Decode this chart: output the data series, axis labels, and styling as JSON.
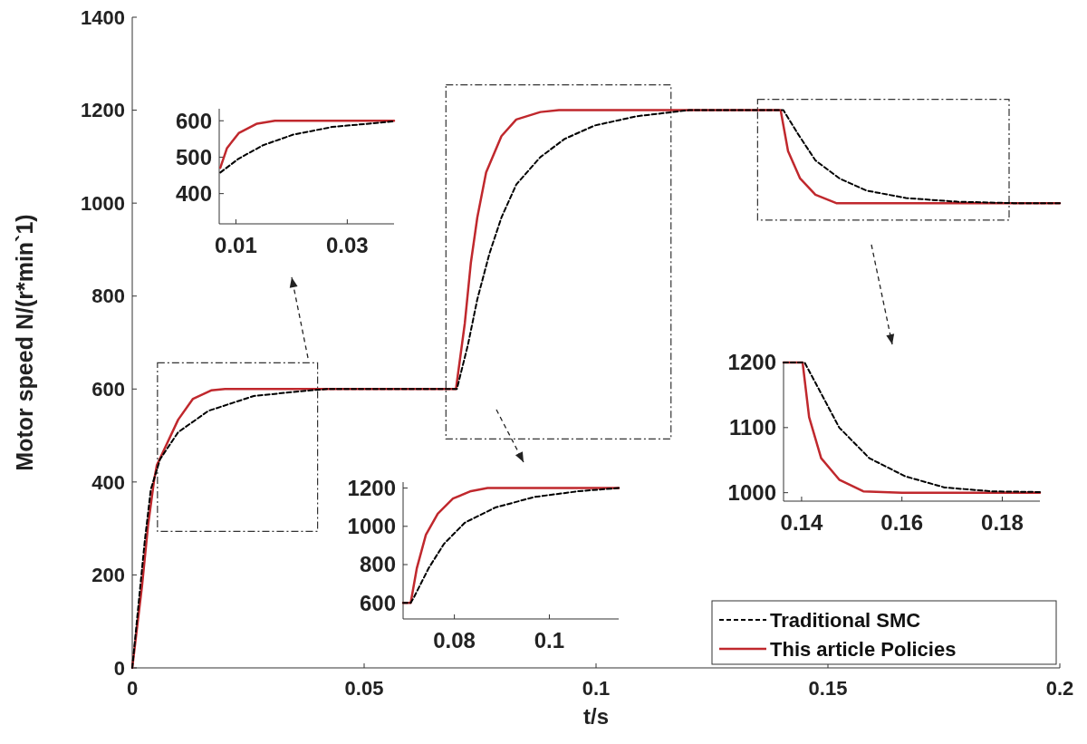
{
  "chart_data": [
    {
      "type": "line",
      "xlabel": "t/s",
      "ylabel": "Motor speed N/(r*min`1)",
      "xlim": [
        0,
        0.2
      ],
      "xticks": [
        0,
        0.05,
        0.1,
        0.15,
        0.2
      ],
      "ylim": [
        0,
        1400
      ],
      "yticks": [
        0,
        200,
        400,
        600,
        800,
        1000,
        1200,
        1400
      ],
      "legend": "bottom right",
      "grid": false,
      "series": [
        {
          "name": "Traditional SMC",
          "color": "#000000",
          "line_style": "dashed",
          "x": [
            0,
            0.0027,
            0.004,
            0.006,
            0.0099,
            0.0164,
            0.0262,
            0.036,
            0.042,
            0.07,
            0.0724,
            0.0744,
            0.077,
            0.0796,
            0.0828,
            0.088,
            0.0932,
            0.0997,
            0.1088,
            0.12,
            0.1404,
            0.1434,
            0.1473,
            0.1525,
            0.1583,
            0.1668,
            0.1779,
            0.19,
            0.2
          ],
          "values": [
            0,
            273,
            384,
            449,
            507,
            553,
            585,
            595,
            600,
            600,
            696,
            793,
            891,
            969,
            1040,
            1099,
            1138,
            1167,
            1187,
            1200,
            1200,
            1151,
            1092,
            1053,
            1027,
            1011,
            1003,
            1000,
            1000
          ]
        },
        {
          "name": "This article Policies",
          "color": "#c0282d",
          "line_style": "solid",
          "x": [
            0,
            0.0021,
            0.0034,
            0.0047,
            0.0053,
            0.0099,
            0.0131,
            0.017,
            0.02,
            0.0698,
            0.0717,
            0.073,
            0.0744,
            0.0763,
            0.0796,
            0.0828,
            0.088,
            0.092,
            0.1398,
            0.1414,
            0.144,
            0.1473,
            0.1518,
            0.2
          ],
          "values": [
            0,
            176,
            306,
            403,
            436,
            534,
            579,
            597,
            600,
            600,
            741,
            871,
            969,
            1066,
            1144,
            1180,
            1196,
            1200,
            1200,
            1112,
            1053,
            1018,
            1000,
            1000
          ]
        }
      ]
    },
    {
      "type": "line",
      "xlim": [
        0.007,
        0.0384
      ],
      "xticks": [
        0.01,
        0.03
      ],
      "ylim": [
        317,
        633
      ],
      "yticks": [
        400,
        500,
        600
      ],
      "series": [
        {
          "color": "#000000",
          "line_style": "dashed",
          "x": [
            0.0072,
            0.0105,
            0.0149,
            0.0203,
            0.0273,
            0.0381
          ],
          "values": [
            458,
            496,
            533,
            562,
            583,
            598
          ]
        },
        {
          "color": "#c0282d",
          "line_style": "solid",
          "x": [
            0.0072,
            0.0084,
            0.0105,
            0.0138,
            0.017,
            0.0384
          ],
          "values": [
            471,
            525,
            566,
            592,
            600,
            600
          ]
        }
      ]
    },
    {
      "type": "line",
      "xlim": [
        0.0692,
        0.1146
      ],
      "xticks": [
        0.08,
        0.1
      ],
      "ylim": [
        516,
        1231
      ],
      "yticks": [
        600,
        800,
        1000,
        1200
      ],
      "series": [
        {
          "color": "#000000",
          "line_style": "dashed",
          "x": [
            0.0692,
            0.0708,
            0.0714,
            0.0746,
            0.0778,
            0.0822,
            0.0886,
            0.0968,
            0.1063,
            0.1146
          ],
          "values": [
            600,
            600,
            625,
            782,
            908,
            1019,
            1098,
            1153,
            1184,
            1200
          ]
        },
        {
          "color": "#c0282d",
          "line_style": "solid",
          "x": [
            0.0692,
            0.0708,
            0.0721,
            0.074,
            0.0765,
            0.0797,
            0.0835,
            0.087,
            0.1146
          ],
          "values": [
            600,
            600,
            782,
            956,
            1066,
            1145,
            1184,
            1200,
            1200
          ]
        }
      ]
    },
    {
      "type": "line",
      "xlim": [
        0.1364,
        0.1875
      ],
      "xticks": [
        0.14,
        0.16,
        0.18
      ],
      "ylim": [
        987,
        1200
      ],
      "yticks": [
        1000,
        1100,
        1200
      ],
      "series": [
        {
          "color": "#000000",
          "line_style": "dashed",
          "x": [
            0.1364,
            0.1406,
            0.1433,
            0.1475,
            0.1535,
            0.1607,
            0.1685,
            0.178,
            0.1875
          ],
          "values": [
            1200,
            1200,
            1161,
            1100,
            1053,
            1025,
            1008,
            1002,
            1001
          ]
        },
        {
          "color": "#c0282d",
          "line_style": "solid",
          "x": [
            0.1364,
            0.1402,
            0.1415,
            0.1439,
            0.1475,
            0.1523,
            0.16,
            0.1875
          ],
          "values": [
            1200,
            1200,
            1116,
            1053,
            1020,
            1002,
            1000,
            1000
          ]
        }
      ]
    }
  ]
}
